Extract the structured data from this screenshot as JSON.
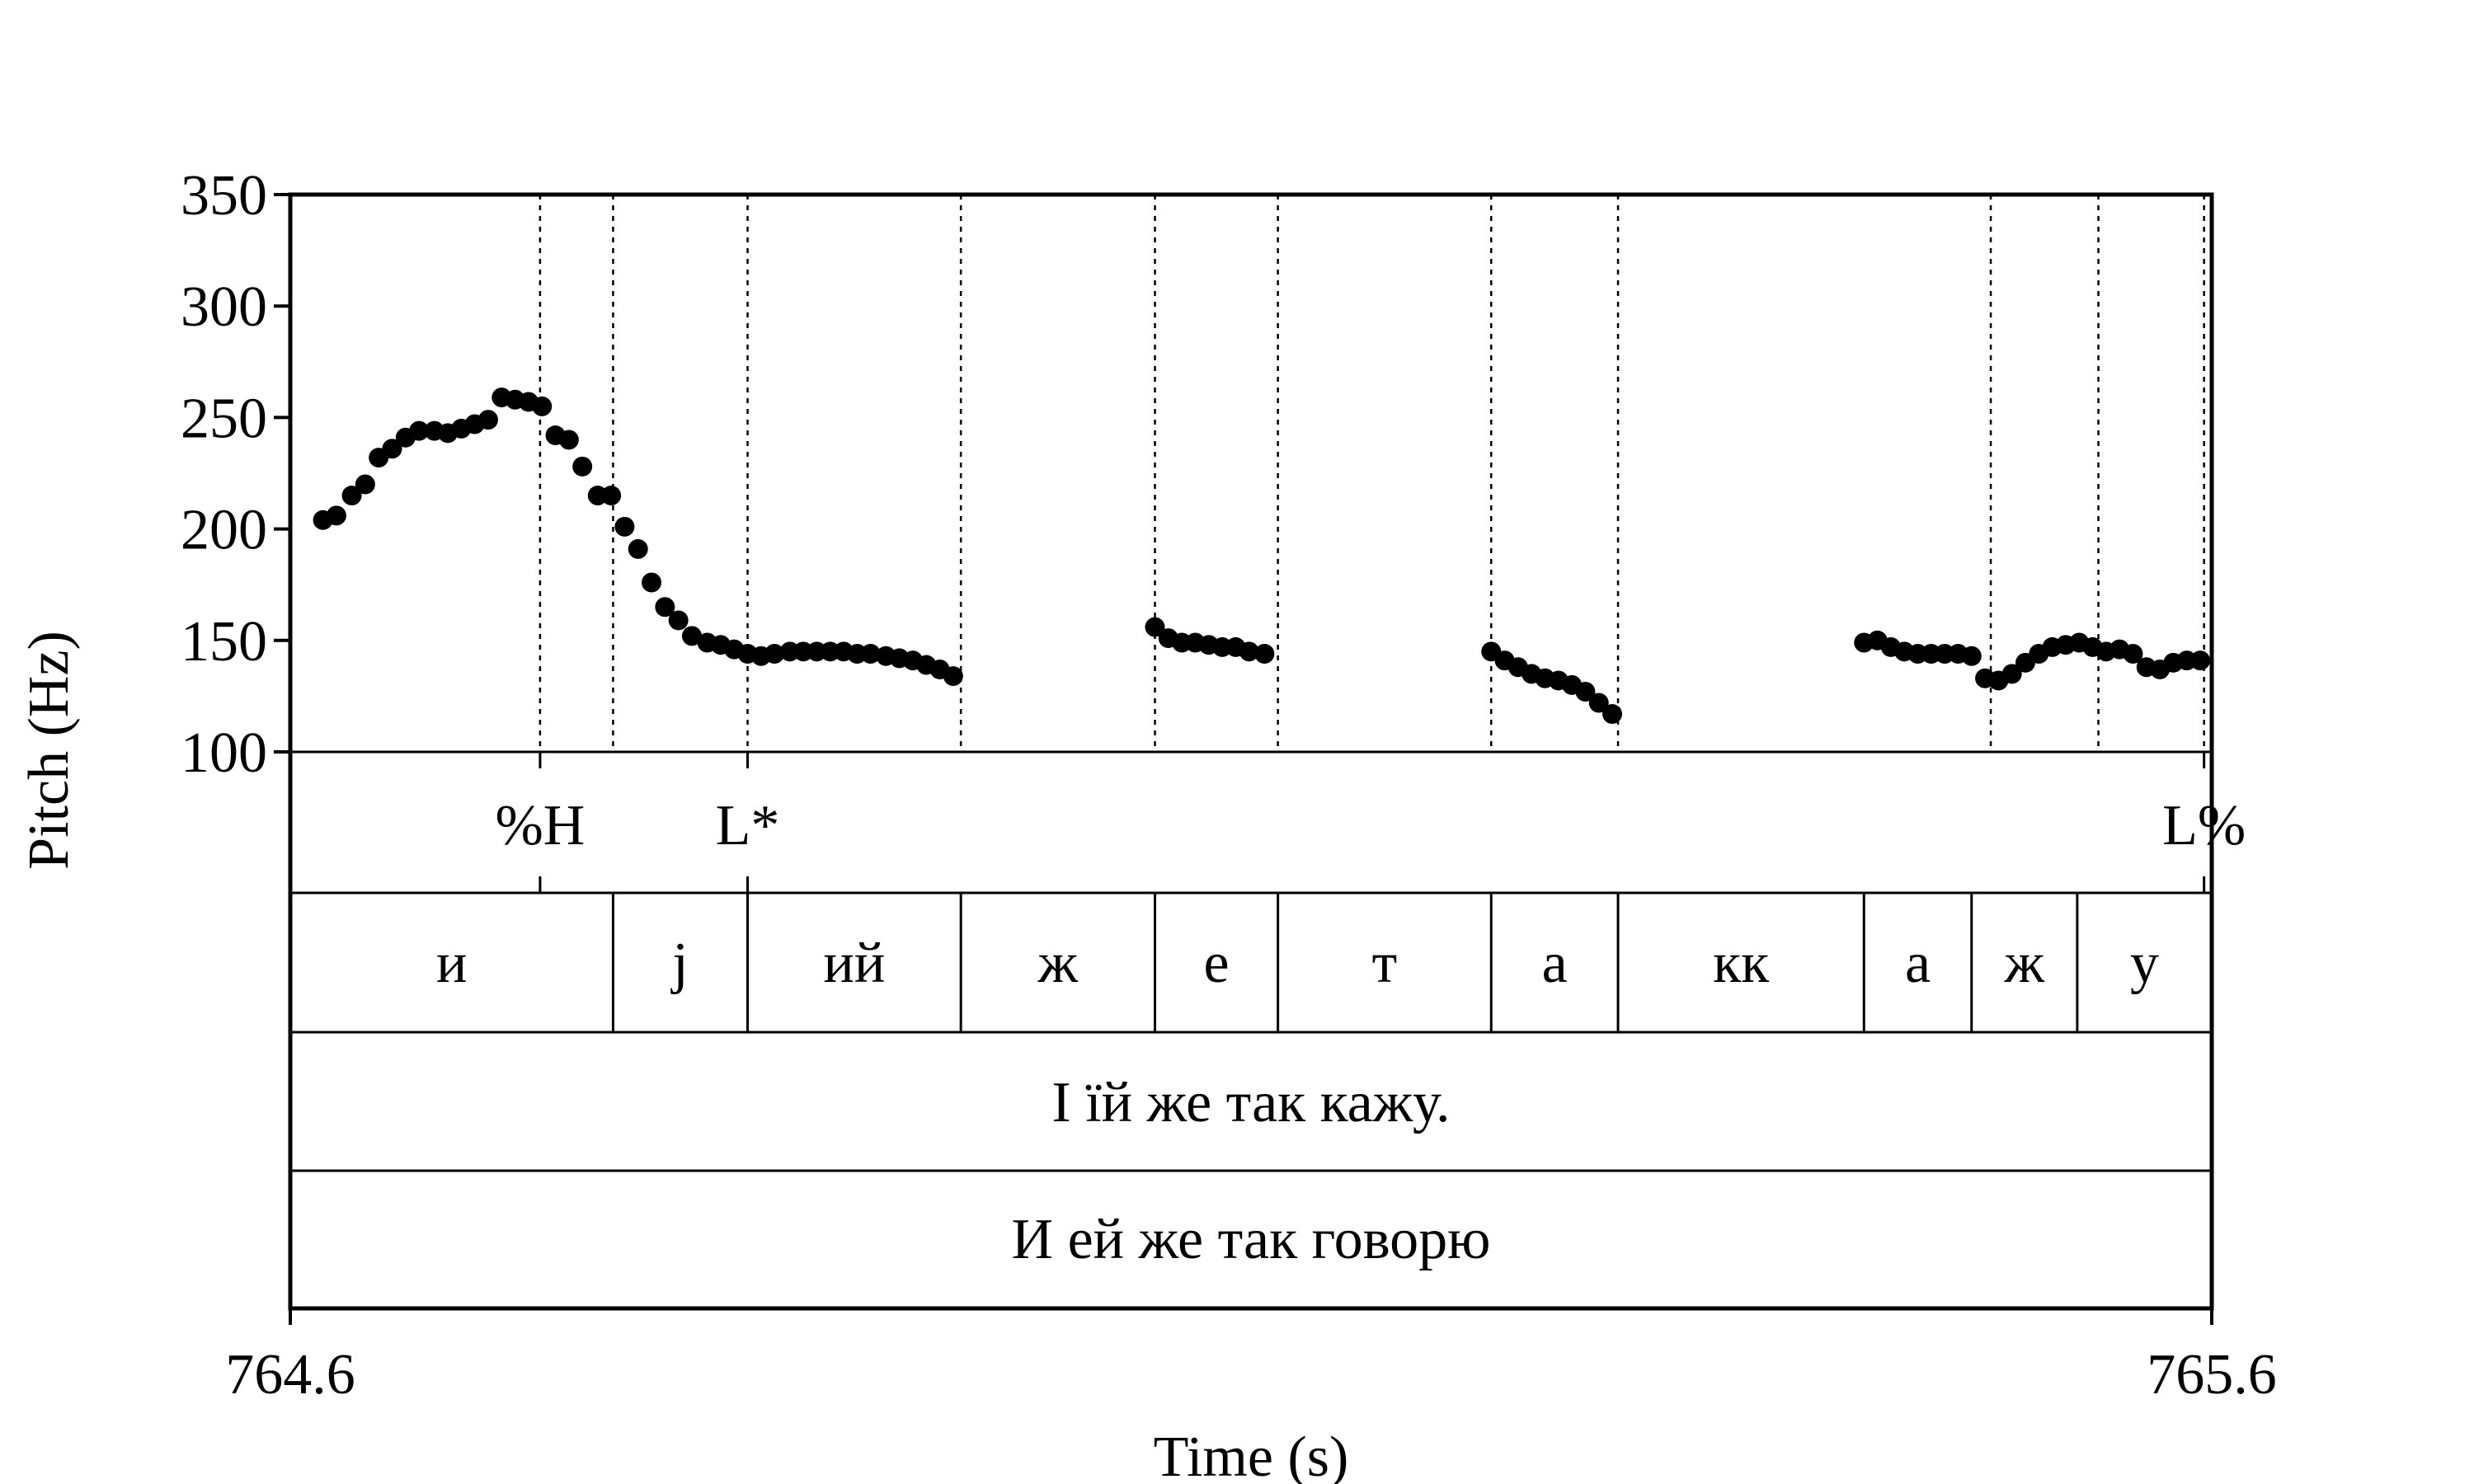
{
  "chart_data": {
    "type": "scatter",
    "title": "",
    "xlabel": "Time (s)",
    "ylabel": "Pitch (Hz)",
    "xlim": [
      764.6,
      765.6
    ],
    "ylim": [
      100,
      350
    ],
    "x_tick_labels": [
      "764.6",
      "765.6"
    ],
    "y_ticks": [
      100,
      150,
      200,
      250,
      300,
      350
    ],
    "y_tick_labels": [
      "100",
      "150",
      "200",
      "250",
      "300",
      "350"
    ],
    "boundaries": [
      764.73,
      764.768,
      764.838,
      764.949,
      765.05,
      765.114,
      765.225,
      765.291,
      765.485,
      765.541,
      765.596
    ],
    "tone_tier": {
      "labels": [
        {
          "t": 764.73,
          "label": "%H"
        },
        {
          "t": 764.838,
          "label": "L*"
        },
        {
          "t": 765.596,
          "label": "L%"
        }
      ]
    },
    "segment_tier": {
      "intervals": [
        {
          "start": 764.6,
          "end": 764.768,
          "label": "и"
        },
        {
          "start": 764.768,
          "end": 764.838,
          "label": "j"
        },
        {
          "start": 764.838,
          "end": 764.949,
          "label": "ий"
        },
        {
          "start": 764.949,
          "end": 765.05,
          "label": "ж"
        },
        {
          "start": 765.05,
          "end": 765.114,
          "label": "е"
        },
        {
          "start": 765.114,
          "end": 765.225,
          "label": "т"
        },
        {
          "start": 765.225,
          "end": 765.291,
          "label": "а"
        },
        {
          "start": 765.291,
          "end": 765.419,
          "label": "кк"
        },
        {
          "start": 765.419,
          "end": 765.475,
          "label": "а"
        },
        {
          "start": 765.475,
          "end": 765.53,
          "label": "ж"
        },
        {
          "start": 765.53,
          "end": 765.6,
          "label": "у"
        }
      ]
    },
    "orthography_tier": {
      "label": "І їй же так кажу."
    },
    "translation_tier": {
      "label": "И ей же так говорю"
    },
    "series": [
      {
        "name": "pitch",
        "x": [
          764.617,
          764.624,
          764.632,
          764.639,
          764.646,
          764.653,
          764.66,
          764.667,
          764.675,
          764.682,
          764.689,
          764.696,
          764.703,
          764.71,
          764.717,
          764.724,
          764.731,
          764.738,
          764.745,
          764.752,
          764.76,
          764.767,
          764.774,
          764.781,
          764.788,
          764.795,
          764.802,
          764.809,
          764.817,
          764.824,
          764.831,
          764.838,
          764.845,
          764.852,
          764.86,
          764.867,
          764.874,
          764.881,
          764.888,
          764.895,
          764.902,
          764.91,
          764.917,
          764.924,
          764.931,
          764.938,
          764.945,
          765.05,
          765.057,
          765.064,
          765.071,
          765.078,
          765.085,
          765.092,
          765.099,
          765.107,
          765.225,
          765.232,
          765.239,
          765.246,
          765.253,
          765.26,
          765.267,
          765.274,
          765.281,
          765.288,
          765.419,
          765.426,
          765.433,
          765.44,
          765.447,
          765.454,
          765.461,
          765.468,
          765.475,
          765.482,
          765.489,
          765.496,
          765.503,
          765.51,
          765.517,
          765.524,
          765.531,
          765.538,
          765.545,
          765.552,
          765.559,
          765.566,
          765.573,
          765.58,
          765.587,
          765.594
        ],
        "y": [
          204,
          206,
          215,
          220,
          232,
          236,
          241,
          244,
          244,
          243,
          245,
          247,
          249,
          259,
          258,
          257,
          255,
          242,
          240,
          228,
          215,
          215,
          201,
          191,
          176,
          165,
          159,
          152,
          149,
          148,
          146,
          144,
          143,
          144,
          145,
          145,
          145,
          145,
          145,
          144,
          144,
          143,
          142,
          141,
          139,
          137,
          134,
          156,
          151,
          149,
          149,
          148,
          147,
          147,
          145,
          144,
          145,
          141,
          138,
          135,
          133,
          132,
          130,
          127,
          122,
          117,
          149,
          150,
          147,
          145,
          144,
          144,
          144,
          144,
          143,
          133,
          132,
          135,
          140,
          144,
          147,
          148,
          149,
          147,
          145,
          146,
          144,
          138,
          137,
          140,
          141,
          141
        ]
      }
    ]
  },
  "colors": {
    "ink": "#000000",
    "background": "#ffffff"
  }
}
